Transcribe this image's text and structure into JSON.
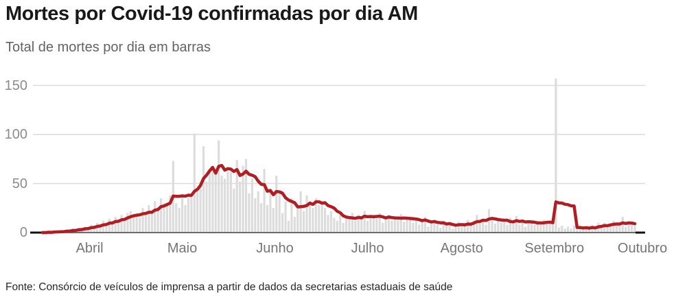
{
  "header": {
    "title": "Mortes por Covid-19 confirmadas por dia AM",
    "subtitle": "Total de mortes por dia em barras"
  },
  "footer": {
    "source": "Fonte: Consórcio de veículos de imprensa a partir de dados da secretarias estaduais de saúde"
  },
  "chart_data": {
    "type": "bar",
    "title": "Mortes por Covid-19 confirmadas por dia AM",
    "subtitle": "Total de mortes por dia em barras",
    "ylabel": "",
    "xlabel": "",
    "ylim": [
      0,
      160
    ],
    "y_ticks": [
      0,
      50,
      100,
      150
    ],
    "grid": "horizontal",
    "x_tick_labels": [
      "Abril",
      "Maio",
      "Junho",
      "Julho",
      "Agosto",
      "Setembro",
      "Outubro"
    ],
    "months": [
      {
        "label": "Abril",
        "center_day": 15.5
      },
      {
        "label": "Maio",
        "center_day": 46
      },
      {
        "label": "Junho",
        "center_day": 76.5
      },
      {
        "label": "Julho",
        "center_day": 107
      },
      {
        "label": "Agosto",
        "center_day": 138
      },
      {
        "label": "Setembro",
        "center_day": 168.5
      },
      {
        "label": "Outubro",
        "center_day": 197.5
      }
    ],
    "series": [
      {
        "name": "mortes-por-dia-barras",
        "type": "bar",
        "color": "#dcdcdc",
        "values": [
          0,
          0,
          1,
          0,
          2,
          1,
          2,
          1,
          3,
          2,
          4,
          3,
          5,
          4,
          6,
          5,
          8,
          6,
          10,
          8,
          12,
          9,
          14,
          10,
          16,
          12,
          18,
          15,
          20,
          22,
          17,
          20,
          15,
          25,
          18,
          28,
          22,
          32,
          25,
          35,
          30,
          28,
          38,
          73,
          30,
          25,
          38,
          28,
          35,
          37,
          101,
          45,
          52,
          88,
          52,
          65,
          62,
          60,
          94,
          58,
          55,
          62,
          62,
          45,
          74,
          52,
          68,
          75,
          40,
          55,
          35,
          42,
          30,
          65,
          28,
          45,
          25,
          58,
          40,
          20,
          32,
          12,
          35,
          16,
          28,
          42,
          22,
          38,
          30,
          25,
          35,
          28,
          32,
          25,
          18,
          22,
          15,
          12,
          18,
          10,
          16,
          14,
          20,
          12,
          18,
          15,
          22,
          12,
          16,
          18,
          14,
          20,
          10,
          15,
          18,
          12,
          16,
          13,
          19,
          11,
          14,
          16,
          10,
          14,
          8,
          12,
          16,
          6,
          10,
          13,
          8,
          5,
          12,
          7,
          9,
          4,
          8,
          11,
          6,
          10,
          13,
          8,
          12,
          18,
          13,
          14,
          8,
          24,
          12,
          9,
          13,
          10,
          12,
          8,
          15,
          10,
          17,
          8,
          12,
          6,
          10,
          13,
          8,
          12,
          8,
          13,
          9,
          12,
          8,
          157,
          5,
          7,
          4,
          6,
          4,
          7,
          3,
          5,
          4,
          6,
          3,
          8,
          5,
          10,
          8,
          10,
          5,
          9,
          12,
          7,
          10,
          16,
          6,
          9,
          8,
          7
        ]
      },
      {
        "name": "media-movel-linha",
        "type": "line",
        "color": "#b01e23",
        "derived": "7-day moving average computed from mortes-por-dia-barras values"
      }
    ],
    "annotations": {
      "max_bar_value": 157,
      "peak_line_value_late_may": 66,
      "september_spike_line_plateau": 31
    },
    "colors": {
      "bar": "#dcdcdc",
      "line": "#b01e23",
      "gridline": "#dbdbdb",
      "axis": "#3f3f3f",
      "axis_end_caps": "#111111"
    }
  }
}
